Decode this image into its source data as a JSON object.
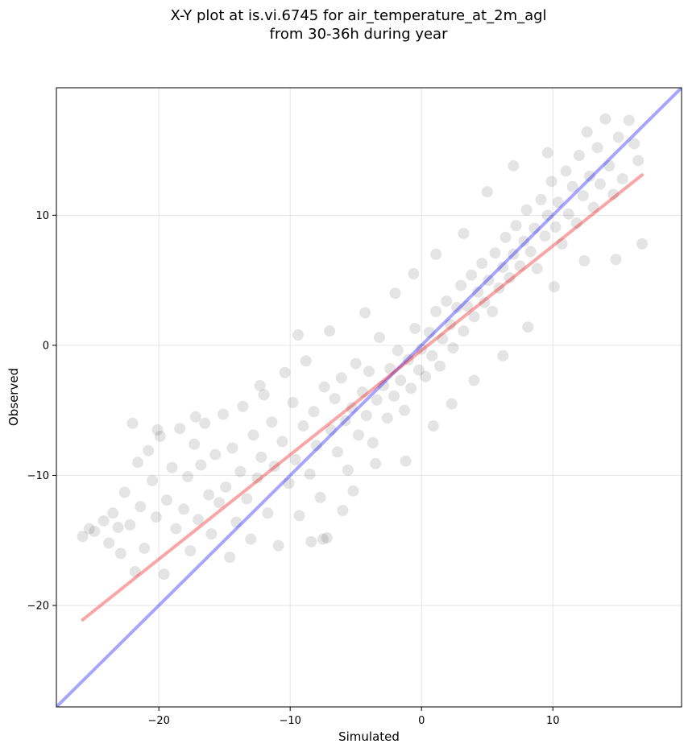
{
  "chart_data": {
    "type": "scatter",
    "title": "X-Y plot at is.vi.6745 for air_temperature_at_2m_agl",
    "subtitle": "from 30-36h during year",
    "xlabel": "Simulated",
    "ylabel": "Observed",
    "xlim": [
      -27.8,
      19.8
    ],
    "ylim": [
      -27.8,
      19.8
    ],
    "xticks": [
      -20,
      -10,
      0,
      10
    ],
    "yticks": [
      -20,
      -10,
      0,
      10
    ],
    "grid": true,
    "point_color": "#000000",
    "point_alpha": 0.07,
    "lines": [
      {
        "kind": "identity",
        "color": "#0000ff",
        "x": [
          -27.8,
          19.8
        ],
        "y": [
          -27.8,
          19.8
        ]
      },
      {
        "kind": "fit",
        "color": "#ee0000",
        "x": [
          -25.8,
          16.8
        ],
        "y": [
          -21.1,
          13.1
        ]
      }
    ],
    "points": [
      [
        -25.8,
        -14.7
      ],
      [
        -25.3,
        -14.1
      ],
      [
        -24.9,
        -14.3
      ],
      [
        -24.2,
        -13.5
      ],
      [
        -23.8,
        -15.2
      ],
      [
        -23.5,
        -12.9
      ],
      [
        -23.1,
        -14.0
      ],
      [
        -22.9,
        -16.0
      ],
      [
        -22.6,
        -11.3
      ],
      [
        -22.2,
        -13.8
      ],
      [
        -21.8,
        -17.4
      ],
      [
        -21.6,
        -9.0
      ],
      [
        -21.4,
        -12.4
      ],
      [
        -21.1,
        -15.6
      ],
      [
        -20.8,
        -8.1
      ],
      [
        -20.5,
        -10.4
      ],
      [
        -20.2,
        -13.2
      ],
      [
        -19.9,
        -7.0
      ],
      [
        -19.6,
        -17.6
      ],
      [
        -19.4,
        -11.9
      ],
      [
        -19.0,
        -9.4
      ],
      [
        -18.7,
        -14.1
      ],
      [
        -18.4,
        -6.4
      ],
      [
        -18.1,
        -12.6
      ],
      [
        -17.8,
        -10.1
      ],
      [
        -17.6,
        -15.8
      ],
      [
        -17.3,
        -7.6
      ],
      [
        -17.0,
        -13.4
      ],
      [
        -16.8,
        -9.2
      ],
      [
        -16.5,
        -6.0
      ],
      [
        -16.2,
        -11.5
      ],
      [
        -16.0,
        -14.5
      ],
      [
        -15.7,
        -8.4
      ],
      [
        -15.4,
        -12.1
      ],
      [
        -15.1,
        -5.3
      ],
      [
        -14.9,
        -10.9
      ],
      [
        -14.6,
        -16.3
      ],
      [
        -14.4,
        -7.9
      ],
      [
        -14.1,
        -13.6
      ],
      [
        -13.8,
        -9.7
      ],
      [
        -13.6,
        -4.7
      ],
      [
        -13.3,
        -11.8
      ],
      [
        -13.0,
        -14.9
      ],
      [
        -12.8,
        -6.9
      ],
      [
        -12.5,
        -10.2
      ],
      [
        -12.2,
        -8.6
      ],
      [
        -12.0,
        -3.8
      ],
      [
        -11.7,
        -12.9
      ],
      [
        -11.4,
        -5.9
      ],
      [
        -11.2,
        -9.3
      ],
      [
        -10.9,
        -15.4
      ],
      [
        -10.6,
        -7.4
      ],
      [
        -10.4,
        -2.1
      ],
      [
        -10.1,
        -10.6
      ],
      [
        -9.8,
        -4.4
      ],
      [
        -9.6,
        -8.8
      ],
      [
        -9.3,
        -13.1
      ],
      [
        -9.0,
        -6.2
      ],
      [
        -8.8,
        -1.2
      ],
      [
        -8.5,
        -9.9
      ],
      [
        -8.2,
        -5.1
      ],
      [
        -8.0,
        -7.7
      ],
      [
        -7.7,
        -11.7
      ],
      [
        -7.4,
        -3.2
      ],
      [
        -7.2,
        -14.8
      ],
      [
        -6.9,
        -6.5
      ],
      [
        -6.6,
        -4.1
      ],
      [
        -6.4,
        -8.2
      ],
      [
        -6.1,
        -2.5
      ],
      [
        -5.8,
        -5.8
      ],
      [
        -5.6,
        -9.6
      ],
      [
        -5.3,
        -4.8
      ],
      [
        -5.0,
        -1.4
      ],
      [
        -4.8,
        -6.9
      ],
      [
        -4.5,
        -3.6
      ],
      [
        -4.2,
        -5.4
      ],
      [
        -4.0,
        -2.0
      ],
      [
        -3.7,
        -7.5
      ],
      [
        -3.4,
        -4.2
      ],
      [
        -3.2,
        0.6
      ],
      [
        -2.9,
        -3.1
      ],
      [
        -2.6,
        -5.6
      ],
      [
        -2.4,
        -1.8
      ],
      [
        -2.1,
        -3.9
      ],
      [
        -1.8,
        -0.4
      ],
      [
        -1.6,
        -2.7
      ],
      [
        -1.3,
        -5.0
      ],
      [
        -1.0,
        -1.1
      ],
      [
        -0.8,
        -3.3
      ],
      [
        -0.5,
        1.3
      ],
      [
        -0.2,
        -1.9
      ],
      [
        0.0,
        -0.3
      ],
      [
        0.3,
        -2.4
      ],
      [
        0.6,
        1.0
      ],
      [
        0.8,
        -0.8
      ],
      [
        1.1,
        2.6
      ],
      [
        1.4,
        -1.6
      ],
      [
        1.6,
        0.5
      ],
      [
        1.9,
        3.4
      ],
      [
        2.2,
        1.6
      ],
      [
        2.4,
        -0.2
      ],
      [
        2.7,
        2.9
      ],
      [
        3.0,
        4.6
      ],
      [
        3.2,
        1.1
      ],
      [
        3.5,
        3.0
      ],
      [
        3.8,
        5.4
      ],
      [
        4.0,
        2.2
      ],
      [
        4.3,
        4.1
      ],
      [
        4.6,
        6.3
      ],
      [
        4.8,
        3.3
      ],
      [
        5.1,
        5.0
      ],
      [
        5.4,
        2.6
      ],
      [
        5.6,
        7.1
      ],
      [
        5.9,
        4.4
      ],
      [
        6.2,
        6.0
      ],
      [
        6.4,
        8.3
      ],
      [
        6.7,
        5.2
      ],
      [
        7.0,
        7.0
      ],
      [
        7.2,
        9.2
      ],
      [
        7.5,
        6.1
      ],
      [
        7.8,
        8.0
      ],
      [
        8.0,
        10.4
      ],
      [
        8.3,
        7.2
      ],
      [
        8.6,
        9.0
      ],
      [
        8.8,
        5.9
      ],
      [
        9.1,
        11.2
      ],
      [
        9.4,
        8.4
      ],
      [
        9.6,
        10.0
      ],
      [
        9.9,
        12.6
      ],
      [
        10.2,
        9.1
      ],
      [
        10.4,
        11.0
      ],
      [
        10.7,
        7.8
      ],
      [
        11.0,
        13.4
      ],
      [
        11.2,
        10.1
      ],
      [
        11.5,
        12.2
      ],
      [
        11.8,
        9.4
      ],
      [
        12.0,
        14.6
      ],
      [
        12.3,
        11.5
      ],
      [
        12.6,
        16.4
      ],
      [
        12.8,
        13.0
      ],
      [
        13.1,
        10.6
      ],
      [
        13.4,
        15.2
      ],
      [
        13.6,
        12.4
      ],
      [
        14.0,
        17.4
      ],
      [
        14.3,
        13.8
      ],
      [
        14.6,
        11.6
      ],
      [
        15.0,
        16.0
      ],
      [
        15.3,
        12.8
      ],
      [
        15.8,
        17.3
      ],
      [
        16.2,
        15.5
      ],
      [
        16.5,
        14.2
      ],
      [
        16.8,
        7.8
      ],
      [
        -22.0,
        -6.0
      ],
      [
        -20.1,
        -6.5
      ],
      [
        -17.2,
        -5.5
      ],
      [
        -12.3,
        -3.1
      ],
      [
        -9.4,
        0.8
      ],
      [
        -7.0,
        1.1
      ],
      [
        -4.3,
        2.5
      ],
      [
        -2.0,
        4.0
      ],
      [
        -1.2,
        -8.9
      ],
      [
        -3.5,
        -9.1
      ],
      [
        -6.0,
        -12.7
      ],
      [
        -8.4,
        -15.1
      ],
      [
        -7.5,
        -14.9
      ],
      [
        -5.2,
        -11.2
      ],
      [
        0.9,
        -6.2
      ],
      [
        2.3,
        -4.5
      ],
      [
        4.0,
        -2.7
      ],
      [
        6.2,
        -0.8
      ],
      [
        8.1,
        1.4
      ],
      [
        10.1,
        4.5
      ],
      [
        12.4,
        6.5
      ],
      [
        14.8,
        6.6
      ],
      [
        3.2,
        8.6
      ],
      [
        1.1,
        7.0
      ],
      [
        -0.6,
        5.5
      ],
      [
        5.0,
        11.8
      ],
      [
        7.0,
        13.8
      ],
      [
        9.6,
        14.8
      ]
    ]
  }
}
